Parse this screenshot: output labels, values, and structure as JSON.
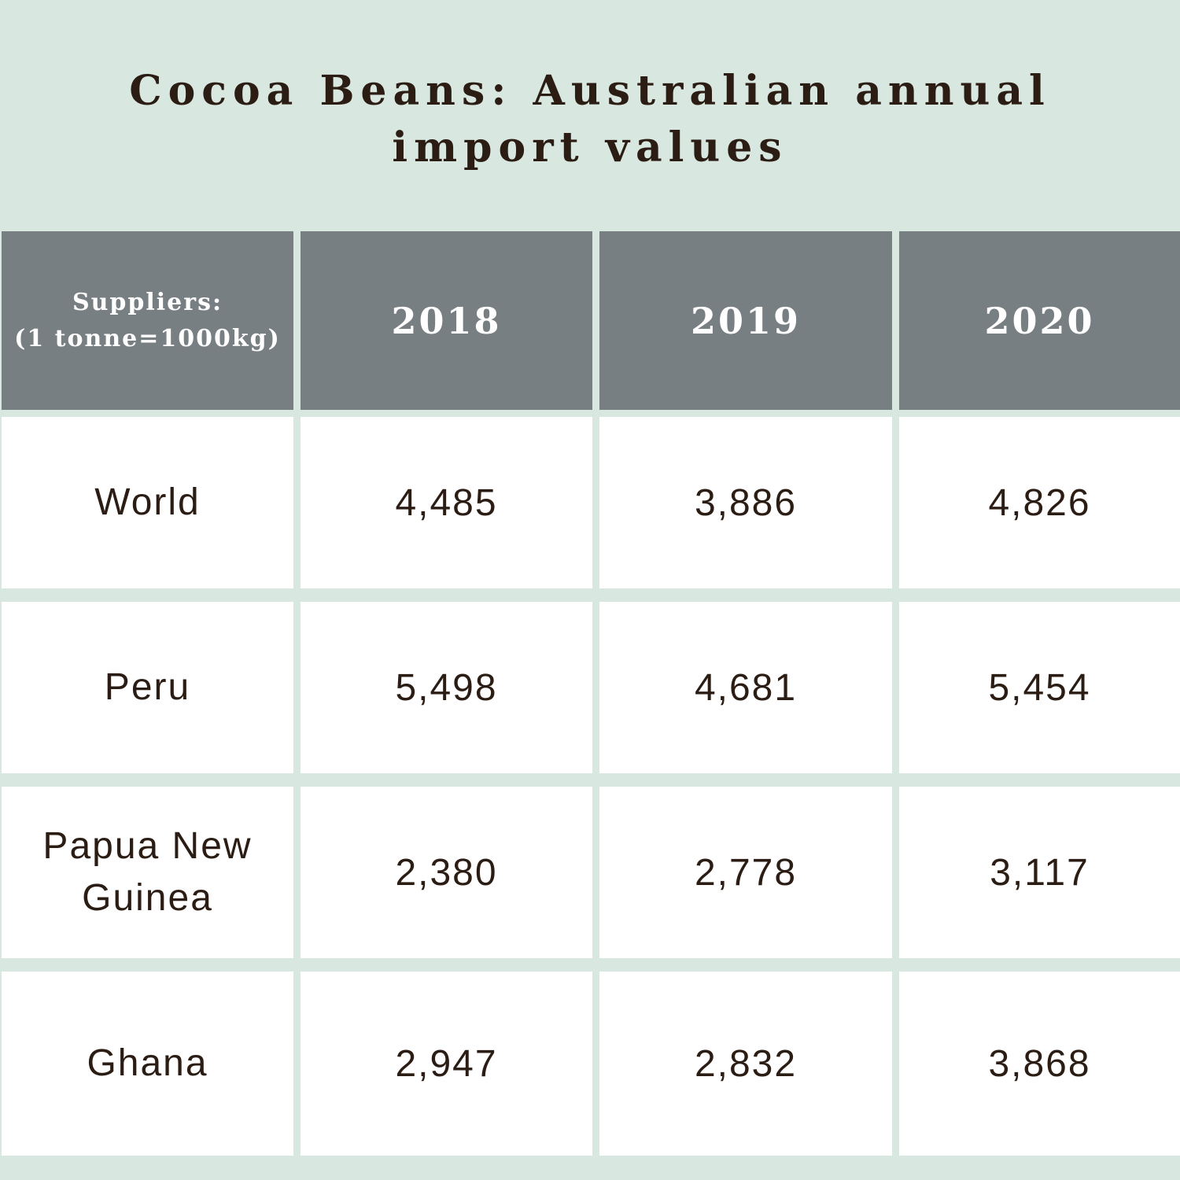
{
  "chart_data": {
    "type": "table",
    "title_lines": [
      "Cocoa Beans: Australian annual",
      "import values"
    ],
    "header": {
      "first_line1": "Suppliers:",
      "first_line2": "(1 tonne=1000kg)",
      "years": [
        "2018",
        "2019",
        "2020"
      ]
    },
    "rows": [
      {
        "supplier": "World",
        "values": [
          "4,485",
          "3,886",
          "4,826"
        ]
      },
      {
        "supplier": "Peru",
        "values": [
          "5,498",
          "4,681",
          "5,454"
        ]
      },
      {
        "supplier": "Papua New Guinea",
        "values": [
          "2,380",
          "2,778",
          "3,117"
        ]
      },
      {
        "supplier": "Ghana",
        "values": [
          "2,947",
          "2,832",
          "3,868"
        ]
      }
    ]
  },
  "colors": {
    "background": "#d8e7df",
    "header_fill": "#787f83",
    "cell_fill": "#ffffff",
    "text_dark": "#2b1d14",
    "header_text": "#ffffff"
  }
}
